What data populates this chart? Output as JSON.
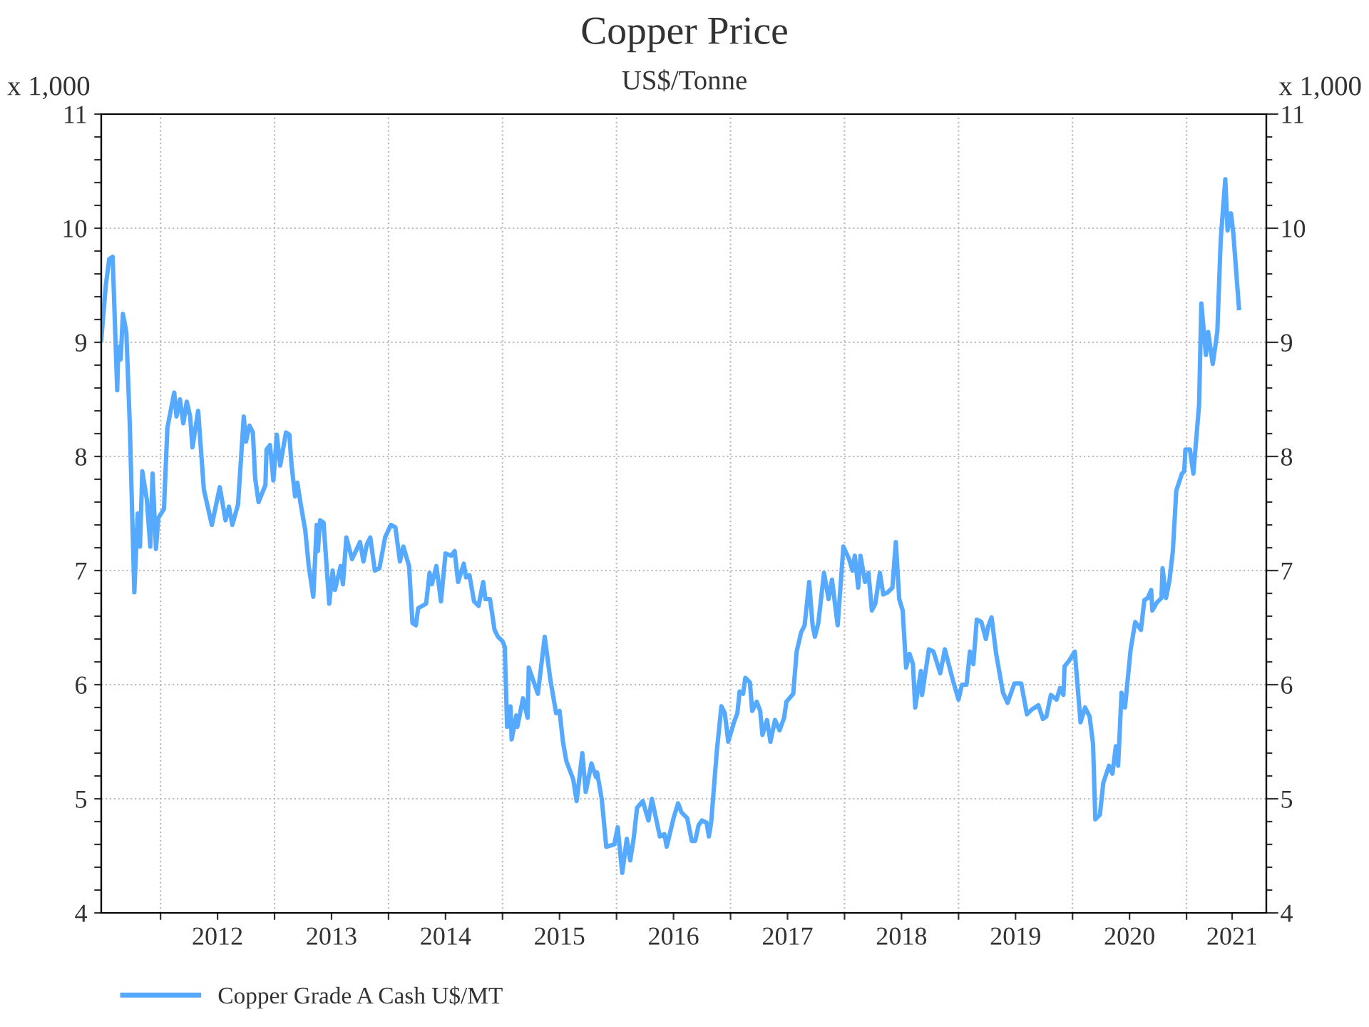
{
  "chart_data": {
    "type": "line",
    "title": "Copper Price",
    "subtitle": "US$/Tonne",
    "ylabel": "x 1,000",
    "y2label": "x 1,000",
    "xlim": [
      2011.48,
      2021.7
    ],
    "xticks": [
      {
        "value": 2012,
        "label": null
      },
      {
        "value": 2013,
        "label": null
      },
      {
        "value": 2014,
        "label": null
      },
      {
        "value": 2015,
        "label": null
      },
      {
        "value": 2016,
        "label": null
      },
      {
        "value": 2017,
        "label": null
      },
      {
        "value": 2018,
        "label": null
      },
      {
        "value": 2019,
        "label": null
      },
      {
        "value": 2020,
        "label": null
      },
      {
        "value": 2021,
        "label": null
      },
      {
        "value": 2012.5,
        "label": "2012"
      },
      {
        "value": 2013.5,
        "label": "2013"
      },
      {
        "value": 2014.5,
        "label": "2014"
      },
      {
        "value": 2015.5,
        "label": "2015"
      },
      {
        "value": 2016.5,
        "label": "2016"
      },
      {
        "value": 2017.5,
        "label": "2017"
      },
      {
        "value": 2018.5,
        "label": "2018"
      },
      {
        "value": 2019.5,
        "label": "2019"
      },
      {
        "value": 2020.5,
        "label": "2020"
      },
      {
        "value": 2021.4,
        "label": "2021"
      }
    ],
    "ylim": [
      4,
      11
    ],
    "yticks": [
      4,
      5,
      6,
      7,
      8,
      9,
      10,
      11,
      {
        "value": 4.2,
        "label": null
      },
      {
        "value": 4.4,
        "label": null
      },
      {
        "value": 4.6,
        "label": null
      },
      {
        "value": 4.8,
        "label": null
      },
      {
        "value": 5.2,
        "label": null
      },
      {
        "value": 5.4,
        "label": null
      },
      {
        "value": 5.6,
        "label": null
      },
      {
        "value": 5.8,
        "label": null
      },
      {
        "value": 6.2,
        "label": null
      },
      {
        "value": 6.4,
        "label": null
      },
      {
        "value": 6.6,
        "label": null
      },
      {
        "value": 6.8,
        "label": null
      },
      {
        "value": 7.2,
        "label": null
      },
      {
        "value": 7.4,
        "label": null
      },
      {
        "value": 7.6,
        "label": null
      },
      {
        "value": 7.8,
        "label": null
      },
      {
        "value": 8.2,
        "label": null
      },
      {
        "value": 8.4,
        "label": null
      },
      {
        "value": 8.6,
        "label": null
      },
      {
        "value": 8.8,
        "label": null
      },
      {
        "value": 9.2,
        "label": null
      },
      {
        "value": 9.4,
        "label": null
      },
      {
        "value": 9.6,
        "label": null
      },
      {
        "value": 9.8,
        "label": null
      },
      {
        "value": 10.2,
        "label": null
      },
      {
        "value": 10.4,
        "label": null
      },
      {
        "value": 10.6,
        "label": null
      },
      {
        "value": 10.8,
        "label": null
      }
    ],
    "y2lim": [
      4,
      11
    ],
    "y2ticks": [
      4,
      5,
      6,
      7,
      8,
      9,
      10,
      11,
      {
        "value": 4.2,
        "label": null
      },
      {
        "value": 4.4,
        "label": null
      },
      {
        "value": 4.6,
        "label": null
      },
      {
        "value": 4.8,
        "label": null
      },
      {
        "value": 5.2,
        "label": null
      },
      {
        "value": 5.4,
        "label": null
      },
      {
        "value": 5.6,
        "label": null
      },
      {
        "value": 5.8,
        "label": null
      },
      {
        "value": 6.2,
        "label": null
      },
      {
        "value": 6.4,
        "label": null
      },
      {
        "value": 6.6,
        "label": null
      },
      {
        "value": 6.8,
        "label": null
      },
      {
        "value": 7.2,
        "label": null
      },
      {
        "value": 7.4,
        "label": null
      },
      {
        "value": 7.6,
        "label": null
      },
      {
        "value": 7.8,
        "label": null
      },
      {
        "value": 8.2,
        "label": null
      },
      {
        "value": 8.4,
        "label": null
      },
      {
        "value": 8.6,
        "label": null
      },
      {
        "value": 8.8,
        "label": null
      },
      {
        "value": 9.2,
        "label": null
      },
      {
        "value": 9.4,
        "label": null
      },
      {
        "value": 9.6,
        "label": null
      },
      {
        "value": 9.8,
        "label": null
      },
      {
        "value": 10.2,
        "label": null
      },
      {
        "value": 10.4,
        "label": null
      },
      {
        "value": 10.6,
        "label": null
      },
      {
        "value": 10.8,
        "label": null
      }
    ],
    "grid": true,
    "legend": "bottom left",
    "marker": "none",
    "line_style": "solid",
    "series": [
      {
        "name": "Copper Grade A Cash U$/MT",
        "color": "#55aaff",
        "x": [
          2011.48,
          2011.52,
          2011.55,
          2011.58,
          2011.62,
          2011.63,
          2011.65,
          2011.67,
          2011.7,
          2011.73,
          2011.77,
          2011.8,
          2011.82,
          2011.84,
          2011.88,
          2011.91,
          2011.93,
          2011.96,
          2011.98,
          2012.03,
          2012.06,
          2012.12,
          2012.14,
          2012.17,
          2012.2,
          2012.23,
          2012.26,
          2012.28,
          2012.33,
          2012.38,
          2012.45,
          2012.52,
          2012.57,
          2012.6,
          2012.63,
          2012.68,
          2012.73,
          2012.75,
          2012.78,
          2012.81,
          2012.83,
          2012.86,
          2012.92,
          2012.93,
          2012.96,
          2012.99,
          2013.02,
          2013.05,
          2013.1,
          2013.13,
          2013.15,
          2013.18,
          2013.2,
          2013.23,
          2013.27,
          2013.3,
          2013.34,
          2013.37,
          2013.38,
          2013.4,
          2013.43,
          2013.48,
          2013.51,
          2013.53,
          2013.58,
          2013.6,
          2013.63,
          2013.68,
          2013.75,
          2013.78,
          2013.81,
          2013.84,
          2013.88,
          2013.92,
          2013.97,
          2014.02,
          2014.06,
          2014.1,
          2014.13,
          2014.18,
          2014.21,
          2014.24,
          2014.26,
          2014.33,
          2014.36,
          2014.38,
          2014.42,
          2014.46,
          2014.5,
          2014.55,
          2014.58,
          2014.61,
          2014.66,
          2014.68,
          2014.71,
          2014.75,
          2014.79,
          2014.83,
          2014.85,
          2014.89,
          2014.93,
          2014.96,
          2015.0,
          2015.02,
          2015.04,
          2015.07,
          2015.08,
          2015.12,
          2015.13,
          2015.18,
          2015.22,
          2015.23,
          2015.31,
          2015.37,
          2015.42,
          2015.47,
          2015.5,
          2015.53,
          2015.56,
          2015.62,
          2015.65,
          2015.7,
          2015.73,
          2015.78,
          2015.82,
          2015.83,
          2015.87,
          2015.91,
          2015.98,
          2016.01,
          2016.05,
          2016.09,
          2016.12,
          2016.15,
          2016.18,
          2016.23,
          2016.28,
          2016.31,
          2016.38,
          2016.42,
          2016.44,
          2016.5,
          2016.54,
          2016.57,
          2016.62,
          2016.66,
          2016.69,
          2016.72,
          2016.75,
          2016.79,
          2016.81,
          2016.83,
          2016.88,
          2016.92,
          2016.95,
          2016.98,
          2017.03,
          2017.06,
          2017.08,
          2017.11,
          2017.13,
          2017.17,
          2017.19,
          2017.23,
          2017.26,
          2017.28,
          2017.32,
          2017.35,
          2017.39,
          2017.43,
          2017.47,
          2017.49,
          2017.55,
          2017.58,
          2017.62,
          2017.65,
          2017.69,
          2017.72,
          2017.74,
          2017.77,
          2017.82,
          2017.86,
          2017.89,
          2017.94,
          2017.99,
          2018.04,
          2018.07,
          2018.09,
          2018.12,
          2018.14,
          2018.18,
          2018.21,
          2018.24,
          2018.27,
          2018.31,
          2018.34,
          2018.38,
          2018.42,
          2018.45,
          2018.48,
          2018.51,
          2018.54,
          2018.57,
          2018.6,
          2018.62,
          2018.67,
          2018.68,
          2018.74,
          2018.78,
          2018.84,
          2018.88,
          2018.95,
          2019.0,
          2019.03,
          2019.07,
          2019.1,
          2019.13,
          2019.16,
          2019.2,
          2019.24,
          2019.26,
          2019.29,
          2019.33,
          2019.39,
          2019.43,
          2019.49,
          2019.55,
          2019.6,
          2019.64,
          2019.7,
          2019.74,
          2019.77,
          2019.81,
          2019.86,
          2019.89,
          2019.92,
          2019.93,
          2019.97,
          2020.02,
          2020.07,
          2020.11,
          2020.15,
          2020.18,
          2020.2,
          2020.24,
          2020.27,
          2020.32,
          2020.35,
          2020.38,
          2020.4,
          2020.43,
          2020.46,
          2020.51,
          2020.55,
          2020.6,
          2020.63,
          2020.66,
          2020.69,
          2020.7,
          2020.74,
          2020.78,
          2020.79,
          2020.82,
          2020.85,
          2020.88,
          2020.91,
          2020.96,
          2020.98,
          2020.99,
          2021.03,
          2021.06,
          2021.11,
          2021.13,
          2021.17,
          2021.19,
          2021.23,
          2021.27,
          2021.3,
          2021.34,
          2021.36,
          2021.39,
          2021.41,
          2021.46
        ],
        "values": [
          9.02,
          9.5,
          9.73,
          9.75,
          8.58,
          8.96,
          8.85,
          9.25,
          9.09,
          8.29,
          6.81,
          7.5,
          7.21,
          7.87,
          7.62,
          7.21,
          7.85,
          7.19,
          7.46,
          7.54,
          8.25,
          8.56,
          8.35,
          8.5,
          8.29,
          8.48,
          8.35,
          8.08,
          8.4,
          7.71,
          7.4,
          7.73,
          7.44,
          7.56,
          7.4,
          7.58,
          8.35,
          8.13,
          8.27,
          8.21,
          7.81,
          7.6,
          7.75,
          8.06,
          8.1,
          7.79,
          8.19,
          7.92,
          8.21,
          8.19,
          7.92,
          7.65,
          7.77,
          7.58,
          7.35,
          7.04,
          6.77,
          7.4,
          7.17,
          7.44,
          7.42,
          6.71,
          7.0,
          6.83,
          7.04,
          6.88,
          7.29,
          7.1,
          7.25,
          7.08,
          7.23,
          7.29,
          7.0,
          7.02,
          7.29,
          7.4,
          7.38,
          7.08,
          7.21,
          7.04,
          6.54,
          6.52,
          6.67,
          6.71,
          6.98,
          6.88,
          7.04,
          6.73,
          7.15,
          7.13,
          7.17,
          6.9,
          7.06,
          6.94,
          6.96,
          6.73,
          6.69,
          6.9,
          6.75,
          6.75,
          6.48,
          6.42,
          6.38,
          6.33,
          5.63,
          5.81,
          5.52,
          5.73,
          5.63,
          5.88,
          5.71,
          6.15,
          5.92,
          6.42,
          6.04,
          5.75,
          5.77,
          5.5,
          5.33,
          5.17,
          4.98,
          5.4,
          5.06,
          5.31,
          5.19,
          5.23,
          5.0,
          4.58,
          4.6,
          4.75,
          4.35,
          4.65,
          4.46,
          4.65,
          4.92,
          4.98,
          4.81,
          5.0,
          4.67,
          4.69,
          4.58,
          4.83,
          4.96,
          4.88,
          4.83,
          4.63,
          4.63,
          4.77,
          4.81,
          4.79,
          4.67,
          4.79,
          5.42,
          5.81,
          5.75,
          5.5,
          5.67,
          5.75,
          5.94,
          5.92,
          6.06,
          6.02,
          5.77,
          5.85,
          5.77,
          5.56,
          5.69,
          5.5,
          5.69,
          5.6,
          5.71,
          5.85,
          5.92,
          6.29,
          6.46,
          6.52,
          6.9,
          6.52,
          6.42,
          6.54,
          6.98,
          6.75,
          6.92,
          6.52,
          7.21,
          7.1,
          7.0,
          7.13,
          6.85,
          7.13,
          6.9,
          6.98,
          6.65,
          6.71,
          6.98,
          6.79,
          6.81,
          6.85,
          7.25,
          6.75,
          6.65,
          6.15,
          6.27,
          6.18,
          5.8,
          6.12,
          5.91,
          6.31,
          6.29,
          6.1,
          6.31,
          6.04,
          5.87,
          6.0,
          6.0,
          6.29,
          6.18,
          6.57,
          6.55,
          6.4,
          6.51,
          6.59,
          6.27,
          5.93,
          5.84,
          6.01,
          6.01,
          5.74,
          5.78,
          5.82,
          5.7,
          5.72,
          5.91,
          5.87,
          5.97,
          5.91,
          6.16,
          6.21,
          6.29,
          5.67,
          5.8,
          5.72,
          5.48,
          4.82,
          4.86,
          5.14,
          5.29,
          5.22,
          5.46,
          5.29,
          5.93,
          5.8,
          6.31,
          6.55,
          6.48,
          6.74,
          6.76,
          6.83,
          6.65,
          6.72,
          6.76,
          7.02,
          6.76,
          6.91,
          7.17,
          7.7,
          7.85,
          7.87,
          8.06,
          8.06,
          7.85,
          8.45,
          9.34,
          8.89,
          9.09,
          8.81,
          9.09,
          9.9,
          10.43,
          9.98,
          10.13,
          9.96,
          9.3
        ]
      }
    ]
  }
}
